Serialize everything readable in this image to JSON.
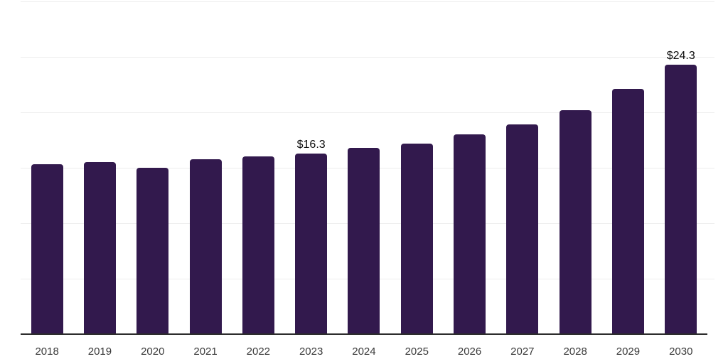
{
  "chart_data": {
    "type": "bar",
    "title": "",
    "xlabel": "",
    "ylabel": "",
    "categories": [
      "2018",
      "2019",
      "2020",
      "2021",
      "2022",
      "2023",
      "2024",
      "2025",
      "2026",
      "2027",
      "2028",
      "2029",
      "2030"
    ],
    "values": [
      15.3,
      15.5,
      15.0,
      15.8,
      16.0,
      16.3,
      16.8,
      17.2,
      18.0,
      18.9,
      20.2,
      22.1,
      24.3
    ],
    "point_labels": [
      "",
      "",
      "",
      "",
      "",
      "$16.3",
      "",
      "",
      "",
      "",
      "",
      "",
      "$24.3"
    ],
    "ylim": [
      0,
      30
    ],
    "grid": true,
    "gridline_step": 5,
    "legend_position": "none",
    "colors": {
      "bar": "#32194d",
      "gridline": "#ededed",
      "axis_line": "#2c2c2c",
      "tick_label": "#3a3a3a",
      "point_label": "#0d0d0d",
      "background": "#ffffff"
    }
  }
}
